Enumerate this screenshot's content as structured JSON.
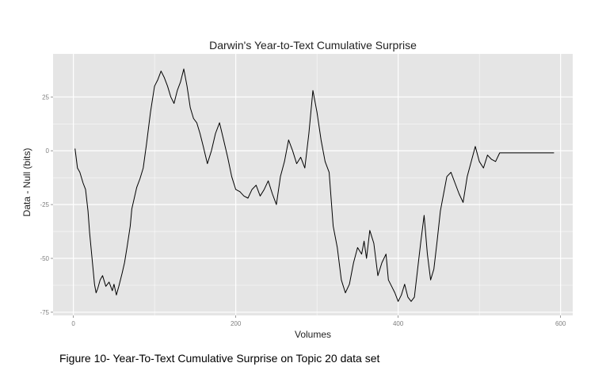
{
  "chart_data": {
    "type": "line",
    "title": "Darwin's Year-to-Text Cumulative Surprise",
    "xlabel": "Volumes",
    "ylabel": "Data - Null (bits)",
    "xlim": [
      -25,
      615
    ],
    "ylim": [
      -76.5,
      45
    ],
    "x_ticks": [
      0,
      200,
      400,
      600
    ],
    "x_tick_labels": [
      "0",
      "200",
      "400",
      "600"
    ],
    "y_ticks": [
      -75,
      -50,
      -25,
      0,
      25
    ],
    "y_tick_labels": [
      "-75",
      "-50",
      "-25",
      "0",
      "25"
    ],
    "grid": true,
    "legend": "none",
    "colors": {
      "panel": "#e5e5e5",
      "grid": "#ffffff",
      "line": "#000000"
    },
    "series": [
      {
        "x": [
          2,
          5,
          8,
          12,
          15,
          18,
          20,
          23,
          26,
          28,
          30,
          33,
          36,
          40,
          44,
          48,
          50,
          53,
          56,
          60,
          63,
          66,
          70,
          72,
          75,
          78,
          82,
          86,
          90,
          95,
          100,
          104,
          108,
          112,
          116,
          120,
          124,
          128,
          132,
          136,
          140,
          144,
          148,
          152,
          156,
          160,
          165,
          170,
          175,
          180,
          185,
          190,
          195,
          200,
          205,
          210,
          215,
          220,
          225,
          230,
          235,
          240,
          245,
          250,
          255,
          260,
          265,
          270,
          275,
          280,
          285,
          290,
          295,
          300,
          305,
          310,
          315,
          320,
          325,
          330,
          335,
          340,
          345,
          350,
          355,
          358,
          361,
          365,
          370,
          375,
          380,
          385,
          388,
          392,
          396,
          400,
          404,
          408,
          412,
          416,
          420,
          424,
          428,
          432,
          436,
          440,
          444,
          448,
          452,
          456,
          460,
          465,
          470,
          475,
          480,
          485,
          490,
          495,
          500,
          505,
          510,
          515,
          520,
          525,
          530,
          535,
          540,
          545,
          550,
          555,
          560,
          565,
          570,
          575,
          578,
          582,
          585,
          588,
          592
        ],
        "y": [
          1,
          -8,
          -10,
          -15,
          -18,
          -28,
          -38,
          -50,
          -62,
          -66,
          -64,
          -60,
          -58,
          -63,
          -61,
          -65,
          -62,
          -67,
          -63,
          -57,
          -52,
          -45,
          -35,
          -27,
          -22,
          -17,
          -13,
          -8,
          3,
          18,
          30,
          33,
          37,
          34,
          30,
          25,
          22,
          28,
          32,
          38,
          30,
          20,
          15,
          13,
          8,
          2,
          -6,
          0,
          8,
          13,
          5,
          -3,
          -12,
          -18,
          -19,
          -21,
          -22,
          -18,
          -16,
          -21,
          -18,
          -14,
          -20,
          -25,
          -12,
          -5,
          5,
          0,
          -6,
          -3,
          -8,
          8,
          28,
          18,
          5,
          -5,
          -10,
          -35,
          -45,
          -60,
          -66,
          -62,
          -52,
          -45,
          -48,
          -42,
          -50,
          -37,
          -43,
          -58,
          -52,
          -48,
          -60,
          -63,
          -66,
          -70,
          -67,
          -62,
          -68,
          -70,
          -68,
          -55,
          -42,
          -30,
          -48,
          -60,
          -55,
          -42,
          -28,
          -20,
          -12,
          -10,
          -15,
          -20,
          -24,
          -12,
          -5,
          2,
          -5,
          -8,
          -2,
          -4,
          -5,
          -1,
          -1,
          -1,
          -1,
          -1,
          -1,
          -1,
          -1,
          -1,
          -1,
          -1,
          -1,
          -1,
          -1,
          -1,
          -1
        ]
      }
    ]
  },
  "caption": "Figure 10- Year-To-Text Cumulative Surprise on Topic 20 data set"
}
